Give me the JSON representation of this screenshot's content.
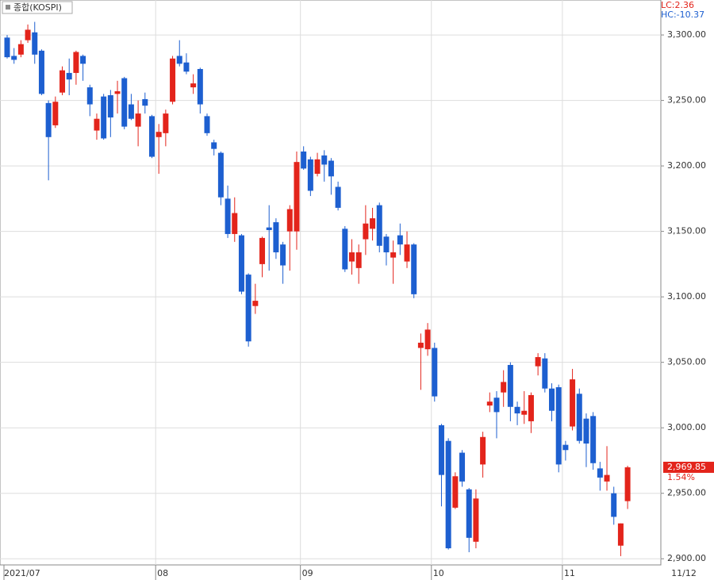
{
  "chart_data": {
    "type": "candlestick",
    "title": "종합(KOSPI)",
    "indicators": [
      "LC:2.36",
      "HC:-10.37"
    ],
    "categories": [
      "2021/07",
      null,
      null,
      null,
      null,
      null,
      null,
      null,
      null,
      null,
      null,
      null,
      null,
      null,
      null,
      null,
      null,
      null,
      null,
      null,
      null,
      null,
      "08",
      null,
      null,
      null,
      null,
      null,
      null,
      null,
      null,
      null,
      null,
      null,
      null,
      null,
      null,
      null,
      null,
      null,
      null,
      null,
      null,
      "09",
      null,
      null,
      null,
      null,
      null,
      null,
      null,
      null,
      null,
      null,
      null,
      null,
      null,
      null,
      null,
      null,
      null,
      null,
      "10",
      null,
      null,
      null,
      null,
      null,
      null,
      null,
      null,
      null,
      null,
      null,
      null,
      null,
      null,
      null,
      null,
      null,
      null,
      "11",
      null,
      null,
      null,
      null,
      null,
      null,
      null,
      null,
      "11/12"
    ],
    "open": [
      3298,
      3284,
      3285,
      3296,
      3302,
      3288,
      3248,
      3231,
      3256,
      3271,
      3271,
      3284,
      3260,
      3227,
      3253,
      3254,
      3255,
      3267,
      3247,
      3230,
      3251,
      3238,
      3222,
      3225,
      3249,
      3284,
      3279,
      3260,
      3274,
      3238,
      3218,
      3210,
      3175,
      3148,
      3147,
      3117,
      3093,
      3125,
      3153,
      3157,
      3140,
      3150,
      3150,
      3211,
      3205,
      3194,
      3208,
      3204,
      3184,
      3152,
      3127,
      3122,
      3144,
      3152,
      3170,
      3146,
      3130,
      3147,
      3127,
      3140,
      3061,
      3060,
      3061,
      3002,
      2990,
      2939,
      2981,
      2953,
      2913,
      2972,
      3017,
      3023,
      3027,
      3048,
      3016,
      3010,
      3005,
      3047,
      3053,
      3030,
      3031,
      2987,
      3001,
      3026,
      3007,
      3009,
      2969,
      2959,
      2950,
      2910,
      2944
    ],
    "high": [
      3300,
      3290,
      3296,
      3308,
      3310,
      3289,
      3250,
      3253,
      3276,
      3282,
      3288,
      3285,
      3262,
      3240,
      3255,
      3258,
      3265,
      3268,
      3255,
      3250,
      3256,
      3239,
      3232,
      3243,
      3284,
      3296,
      3286,
      3270,
      3275,
      3240,
      3220,
      3211,
      3185,
      3176,
      3148,
      3118,
      3110,
      3146,
      3170,
      3160,
      3142,
      3170,
      3211,
      3215,
      3207,
      3210,
      3212,
      3206,
      3188,
      3154,
      3144,
      3140,
      3170,
      3168,
      3172,
      3148,
      3143,
      3156,
      3150,
      3141,
      3072,
      3080,
      3065,
      3003,
      2992,
      2966,
      2983,
      2954,
      2953,
      2997,
      3027,
      3028,
      3044,
      3050,
      3020,
      3028,
      3027,
      3057,
      3057,
      3034,
      3033,
      2990,
      3045,
      3030,
      3011,
      3012,
      2974,
      2986,
      2955,
      2927,
      2971
    ],
    "low": [
      3282,
      3278,
      3283,
      3294,
      3278,
      3254,
      3189,
      3229,
      3254,
      3254,
      3262,
      3265,
      3238,
      3220,
      3220,
      3222,
      3240,
      3228,
      3235,
      3215,
      3240,
      3206,
      3194,
      3215,
      3247,
      3276,
      3270,
      3255,
      3240,
      3223,
      3208,
      3170,
      3145,
      3142,
      3102,
      3062,
      3087,
      3115,
      3120,
      3129,
      3110,
      3120,
      3136,
      3197,
      3177,
      3192,
      3188,
      3178,
      3166,
      3119,
      3117,
      3110,
      3132,
      3143,
      3134,
      3124,
      3110,
      3132,
      3122,
      3099,
      3029,
      3055,
      3020,
      2940,
      2907,
      2938,
      2955,
      2905,
      2908,
      2962,
      3012,
      2992,
      3016,
      3005,
      3002,
      3003,
      2996,
      3040,
      3027,
      3005,
      2966,
      2975,
      2998,
      2988,
      2970,
      2968,
      2952,
      2952,
      2926,
      2902,
      2938
    ],
    "close": [
      3283,
      3281,
      3293,
      3304,
      3285,
      3255,
      3222,
      3249,
      3273,
      3266,
      3287,
      3278,
      3247,
      3236,
      3221,
      3237,
      3257,
      3230,
      3236,
      3240,
      3246,
      3207,
      3226,
      3240,
      3282,
      3278,
      3272,
      3263,
      3247,
      3225,
      3213,
      3176,
      3148,
      3164,
      3104,
      3066,
      3097,
      3145,
      3151,
      3134,
      3124,
      3167,
      3203,
      3198,
      3181,
      3205,
      3201,
      3192,
      3168,
      3121,
      3134,
      3134,
      3156,
      3160,
      3139,
      3134,
      3134,
      3140,
      3140,
      3102,
      3065,
      3075,
      3024,
      2964,
      2908,
      2963,
      2959,
      2916,
      2946,
      2993,
      3020,
      3012,
      3035,
      3016,
      3011,
      3013,
      3025,
      3054,
      3030,
      3013,
      2972,
      2983,
      3037,
      2990,
      2988,
      2973,
      2962,
      2964,
      2932,
      2927,
      2969.85
    ],
    "up_color": "#e3241b",
    "down_color": "#1d5fd0",
    "last_label": {
      "value": 2969.85,
      "label": "2,969.85"
    },
    "change_label": "1.54%",
    "ylim": [
      2895.9,
      3326.7
    ],
    "yticks": [
      {
        "value": 2900,
        "label": "2,900.00"
      },
      {
        "value": 2950,
        "label": "2,950.00"
      },
      {
        "value": 3000,
        "label": "3,000.00"
      },
      {
        "value": 3050,
        "label": "3,050.00"
      },
      {
        "value": 3100,
        "label": "3,100.00"
      },
      {
        "value": 3150,
        "label": "3,150.00"
      },
      {
        "value": 3200,
        "label": "3,200.00"
      },
      {
        "value": 3250,
        "label": "3,250.00"
      },
      {
        "value": 3300,
        "label": "3,300.00"
      }
    ],
    "grid": true
  }
}
